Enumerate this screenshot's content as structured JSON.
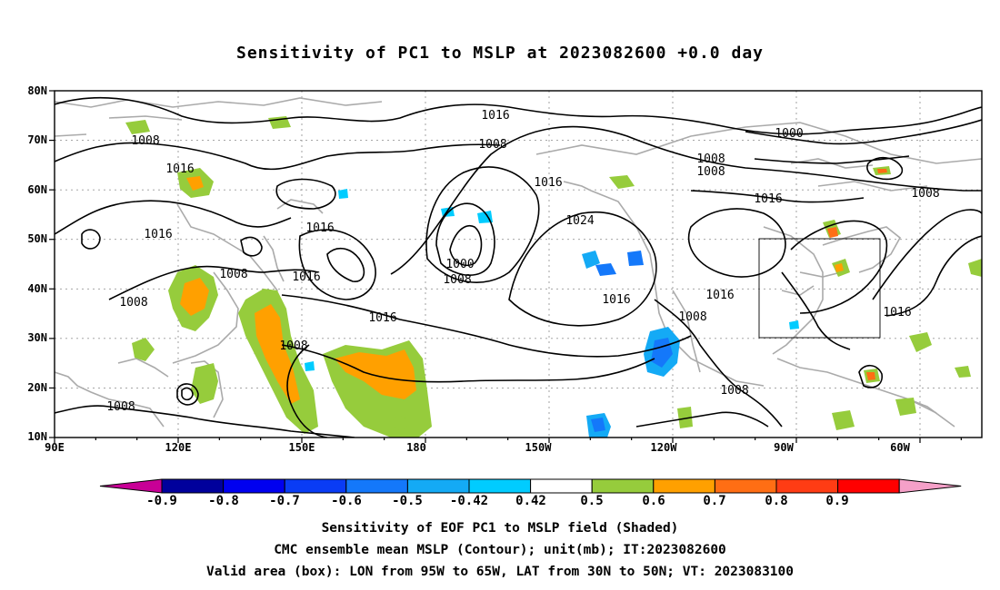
{
  "title": "Sensitivity of PC1 to MSLP at 2023082600 +0.0 day",
  "map": {
    "lat_labels": [
      "80N",
      "70N",
      "60N",
      "50N",
      "40N",
      "30N",
      "20N",
      "10N"
    ],
    "lon_labels": [
      "90E",
      "120E",
      "150E",
      "180",
      "150W",
      "120W",
      "90W",
      "60W"
    ],
    "extent": {
      "lon_min_east": 90,
      "lon_max_east": 315,
      "lat_min": 10,
      "lat_max": 80
    },
    "grid": true,
    "valid_box": {
      "lon_west": -95,
      "lon_east": -65,
      "lat_south": 30,
      "lat_north": 50
    },
    "contour_labels": [
      "1016",
      "1008",
      "1016",
      "1008",
      "1016",
      "1000",
      "1008",
      "1016",
      "1024",
      "1016",
      "1016",
      "1008",
      "1008",
      "1000",
      "1008",
      "1008",
      "1016",
      "1008",
      "1008",
      "1016",
      "1016",
      "1008",
      "1016",
      "1016",
      "1008",
      "1008"
    ],
    "pressure_systems": [
      {
        "type": "low",
        "center_lat": 50,
        "center_lon": -170,
        "center_value": 1000
      },
      {
        "type": "high",
        "center_lat": 38,
        "center_lon": -145,
        "center_value": 1024
      },
      {
        "type": "low",
        "center_lat": 70,
        "center_lon": -55,
        "center_value": 1000
      }
    ],
    "colors": {
      "land": "#aaaaaa",
      "contour": "#000000",
      "grid": "#999999"
    }
  },
  "colorbar": {
    "labels": [
      "-0.9",
      "-0.8",
      "-0.7",
      "-0.6",
      "-0.5",
      "-0.42",
      "0.42",
      "0.5",
      "0.6",
      "0.7",
      "0.8",
      "0.9"
    ],
    "colors": [
      "#00009c",
      "#0000f0",
      "#0a3cf5",
      "#1478fa",
      "#14aaf5",
      "#00ccff",
      "#ffffff",
      "#96cc3c",
      "#ffa000",
      "#ff6e14",
      "#ff3c14",
      "#ff0000"
    ],
    "end_low_color": "#c80096",
    "end_high_color": "#f5a0c8"
  },
  "captions": [
    "Sensitivity of EOF PC1 to MSLP field (Shaded)",
    "CMC ensemble mean MSLP (Contour); unit(mb); IT:2023082600",
    "Valid area (box): LON from 95W to 65W, LAT from 30N to 50N; VT: 2023083100"
  ]
}
